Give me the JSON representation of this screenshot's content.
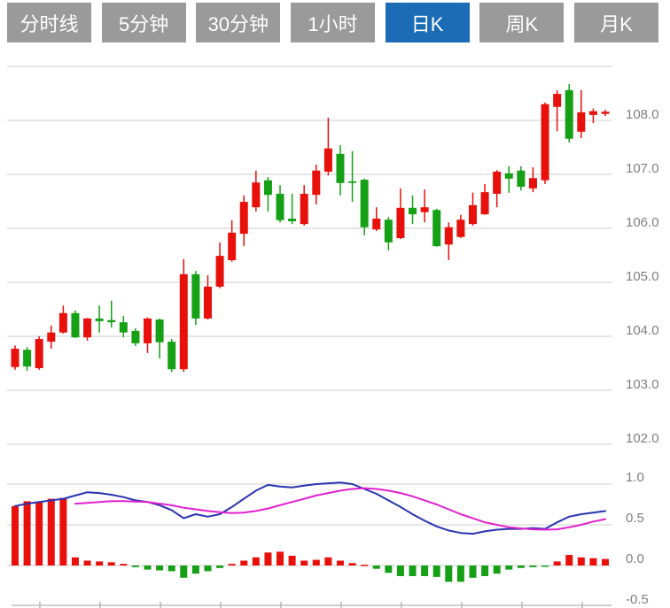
{
  "toolbar": {
    "tabs": [
      {
        "label": "分时线",
        "active": false
      },
      {
        "label": "5分钟",
        "active": false
      },
      {
        "label": "30分钟",
        "active": false
      },
      {
        "label": "1小时",
        "active": false
      },
      {
        "label": "日K",
        "active": true
      },
      {
        "label": "周K",
        "active": false
      },
      {
        "label": "月K",
        "active": false
      }
    ]
  },
  "colors": {
    "tab_inactive": "#9a9a9a",
    "tab_active": "#1b6cb5",
    "grid": "#dedede",
    "axis_label": "#7f7f7f",
    "axis_line": "#cfcfcf",
    "axis_tick": "#b5b5b5",
    "up": "#e8100b",
    "down": "#16a016",
    "dif_line": "#2733b0",
    "dea_line": "#e220cf"
  },
  "chart_data": {
    "type": "candlestick+macd",
    "timeframe_selected": "日K",
    "price_panel": {
      "gridline_values": [
        109,
        108,
        107,
        106,
        105,
        104,
        103,
        102
      ],
      "tick_labels": [
        "108.0",
        "107.0",
        "106.0",
        "105.0",
        "104.0",
        "103.0",
        "102.0"
      ],
      "tick_values": [
        108,
        107,
        106,
        105,
        104,
        103,
        102
      ],
      "ylim": [
        101.6,
        109.2
      ],
      "candles_ohlc": [
        [
          103.43,
          103.83,
          103.38,
          103.77
        ],
        [
          103.75,
          103.8,
          103.36,
          103.44
        ],
        [
          103.41,
          104.0,
          103.38,
          103.95
        ],
        [
          103.9,
          104.2,
          103.77,
          104.07
        ],
        [
          104.07,
          104.57,
          104.05,
          104.43
        ],
        [
          104.43,
          104.48,
          103.97,
          103.98
        ],
        [
          103.98,
          104.34,
          103.92,
          104.33
        ],
        [
          104.33,
          104.57,
          104.07,
          104.28
        ],
        [
          104.3,
          104.66,
          104.16,
          104.26
        ],
        [
          104.26,
          104.38,
          103.98,
          104.07
        ],
        [
          104.1,
          104.15,
          103.82,
          103.87
        ],
        [
          103.87,
          104.35,
          103.69,
          104.33
        ],
        [
          104.31,
          104.33,
          103.59,
          103.89
        ],
        [
          103.9,
          103.95,
          103.34,
          103.39
        ],
        [
          103.39,
          105.43,
          103.34,
          105.15
        ],
        [
          105.15,
          105.21,
          104.21,
          104.33
        ],
        [
          104.33,
          105.13,
          104.31,
          104.92
        ],
        [
          104.92,
          105.74,
          104.89,
          105.49
        ],
        [
          105.41,
          106.15,
          105.38,
          105.92
        ],
        [
          105.9,
          106.61,
          105.67,
          106.49
        ],
        [
          106.39,
          107.07,
          106.31,
          106.85
        ],
        [
          106.89,
          106.95,
          106.31,
          106.62
        ],
        [
          106.64,
          106.8,
          106.11,
          106.15
        ],
        [
          106.18,
          106.64,
          106.08,
          106.13
        ],
        [
          106.08,
          106.8,
          106.05,
          106.64
        ],
        [
          106.62,
          107.18,
          106.44,
          107.07
        ],
        [
          107.05,
          108.05,
          106.98,
          107.48
        ],
        [
          107.38,
          107.54,
          106.61,
          106.84
        ],
        [
          106.87,
          107.43,
          106.49,
          106.85
        ],
        [
          106.9,
          106.92,
          105.87,
          106.02
        ],
        [
          105.98,
          106.39,
          105.95,
          106.18
        ],
        [
          106.16,
          106.21,
          105.59,
          105.74
        ],
        [
          105.82,
          106.74,
          105.8,
          106.38
        ],
        [
          106.38,
          106.61,
          106.08,
          106.26
        ],
        [
          106.3,
          106.72,
          106.11,
          106.39
        ],
        [
          106.34,
          106.36,
          105.66,
          105.67
        ],
        [
          105.7,
          106.11,
          105.41,
          106.02
        ],
        [
          105.84,
          106.25,
          105.82,
          106.16
        ],
        [
          106.08,
          106.66,
          106.05,
          106.43
        ],
        [
          106.26,
          106.82,
          106.25,
          106.67
        ],
        [
          106.64,
          107.08,
          106.39,
          107.05
        ],
        [
          107.02,
          107.15,
          106.66,
          106.92
        ],
        [
          107.07,
          107.15,
          106.7,
          106.77
        ],
        [
          106.74,
          107.13,
          106.67,
          106.93
        ],
        [
          106.89,
          108.33,
          106.82,
          108.3
        ],
        [
          108.25,
          108.56,
          107.8,
          108.49
        ],
        [
          108.56,
          108.67,
          107.59,
          107.66
        ],
        [
          107.79,
          108.56,
          107.67,
          108.15
        ],
        [
          108.1,
          108.22,
          107.95,
          108.17
        ],
        [
          108.12,
          108.2,
          108.08,
          108.16
        ]
      ]
    },
    "macd_panel": {
      "tick_labels": [
        "1.0",
        "0.5",
        "0.0",
        "-0.5"
      ],
      "tick_values": [
        1.0,
        0.5,
        0.0,
        -0.5
      ],
      "gridline_values": [
        1.0,
        0.5,
        0.0
      ],
      "ylim": [
        -0.5,
        1.0
      ],
      "histogram": [
        0.73,
        0.79,
        0.78,
        0.82,
        0.83,
        0.1,
        0.06,
        0.05,
        0.04,
        0.02,
        -0.02,
        -0.05,
        -0.06,
        -0.07,
        -0.15,
        -0.1,
        -0.07,
        -0.03,
        0.02,
        0.06,
        0.1,
        0.16,
        0.17,
        0.12,
        0.06,
        0.07,
        0.1,
        0.06,
        0.03,
        0.01,
        -0.04,
        -0.09,
        -0.13,
        -0.13,
        -0.13,
        -0.14,
        -0.2,
        -0.2,
        -0.15,
        -0.13,
        -0.1,
        -0.05,
        -0.03,
        -0.02,
        -0.01,
        0.05,
        0.13,
        0.1,
        0.09,
        0.08
      ],
      "dif": [
        0.73,
        0.76,
        0.78,
        0.8,
        0.82,
        0.86,
        0.9,
        0.89,
        0.87,
        0.84,
        0.8,
        0.78,
        0.74,
        0.68,
        0.58,
        0.63,
        0.6,
        0.63,
        0.72,
        0.82,
        0.92,
        0.99,
        0.97,
        0.96,
        0.98,
        1.0,
        1.01,
        1.02,
        1.0,
        0.94,
        0.88,
        0.8,
        0.72,
        0.63,
        0.55,
        0.48,
        0.43,
        0.4,
        0.39,
        0.42,
        0.44,
        0.45,
        0.45,
        0.46,
        0.45,
        0.53,
        0.6,
        0.63,
        0.65,
        0.67
      ],
      "dea": [
        null,
        null,
        null,
        null,
        null,
        0.76,
        0.77,
        0.78,
        0.79,
        0.79,
        0.785,
        0.78,
        0.76,
        0.74,
        0.71,
        0.69,
        0.67,
        0.655,
        0.645,
        0.65,
        0.67,
        0.7,
        0.74,
        0.78,
        0.82,
        0.86,
        0.89,
        0.92,
        0.94,
        0.95,
        0.94,
        0.92,
        0.89,
        0.85,
        0.8,
        0.75,
        0.69,
        0.63,
        0.58,
        0.53,
        0.5,
        0.47,
        0.455,
        0.445,
        0.44,
        0.445,
        0.47,
        0.5,
        0.54,
        0.57
      ],
      "x_axis_tick_count": 10
    }
  }
}
